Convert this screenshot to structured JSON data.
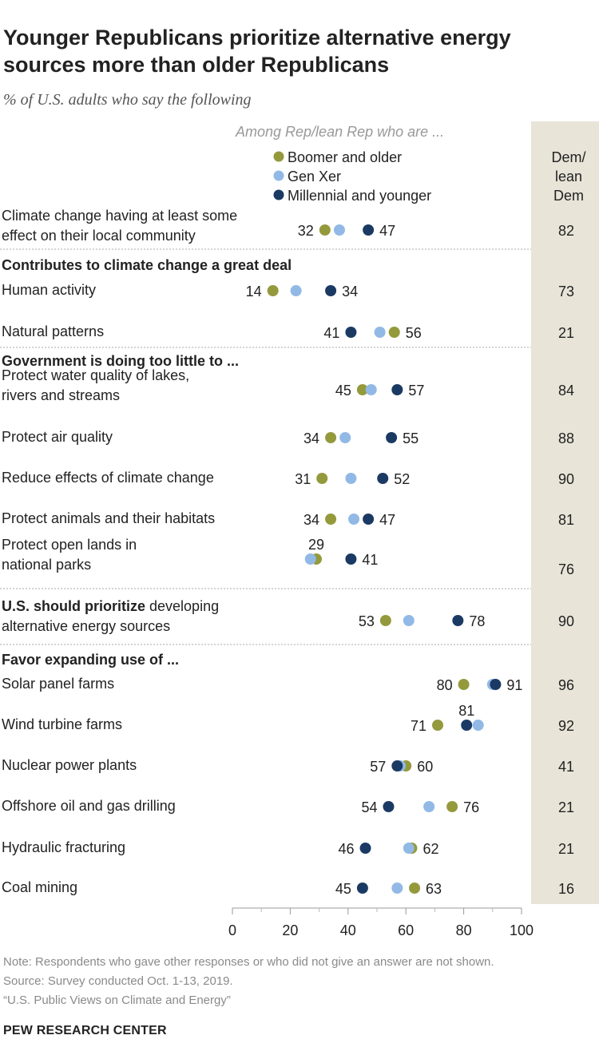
{
  "title": "Younger Republicans prioritize alternative energy sources more than older Republicans",
  "subtitle": "% of U.S. adults who say the following",
  "colors": {
    "boomer": "#949a3c",
    "genx": "#92b9e6",
    "millennial": "#1b3a63",
    "dem_band": "#e8e4d8"
  },
  "chart_data": {
    "type": "scatter",
    "rep_group_header": "Among Rep/lean Rep who are ...",
    "dem_header": [
      "Dem/",
      "lean",
      "Dem"
    ],
    "series": [
      {
        "key": "boomer",
        "name": "Boomer and older"
      },
      {
        "key": "genx",
        "name": "Gen Xer"
      },
      {
        "key": "millennial",
        "name": "Millennial and younger"
      }
    ],
    "xlim": [
      0,
      100
    ],
    "xticks": [
      0,
      20,
      40,
      60,
      80,
      100
    ],
    "rows": [
      {
        "kind": "item",
        "label": [
          "Climate change having at least some",
          "effect on their local community"
        ],
        "boomer": 32,
        "genx": 37,
        "millennial": 47,
        "labels": {
          "left": "32",
          "right": "47"
        },
        "dem": 82
      },
      {
        "kind": "header",
        "label": "Contributes to climate change a great deal"
      },
      {
        "kind": "item",
        "label": [
          "Human activity"
        ],
        "boomer": 14,
        "genx": 22,
        "millennial": 34,
        "labels": {
          "left": "14",
          "right": "34"
        },
        "dem": 73
      },
      {
        "kind": "item",
        "label": [
          "Natural patterns"
        ],
        "boomer": 56,
        "genx": 51,
        "millennial": 41,
        "labels": {
          "left": "41",
          "right": "56"
        },
        "dem": 21
      },
      {
        "kind": "header",
        "label": "Government is doing too little to ..."
      },
      {
        "kind": "item",
        "label": [
          "Protect water quality of lakes,",
          "rivers and streams"
        ],
        "boomer": 45,
        "genx": 48,
        "millennial": 57,
        "labels": {
          "left": "45",
          "right": "57"
        },
        "dem": 84
      },
      {
        "kind": "item",
        "label": [
          "Protect air quality"
        ],
        "boomer": 34,
        "genx": 39,
        "millennial": 55,
        "labels": {
          "left": "34",
          "right": "55"
        },
        "dem": 88
      },
      {
        "kind": "item",
        "label": [
          "Reduce effects of climate change"
        ],
        "boomer": 31,
        "genx": 41,
        "millennial": 52,
        "labels": {
          "left": "31",
          "right": "52"
        },
        "dem": 90
      },
      {
        "kind": "item",
        "label": [
          "Protect animals and their habitats"
        ],
        "boomer": 34,
        "genx": 42,
        "millennial": 47,
        "labels": {
          "left": "34",
          "right": "47"
        },
        "dem": 81
      },
      {
        "kind": "item",
        "label": [
          "Protect open lands in",
          "national parks"
        ],
        "boomer": 29,
        "genx": 27,
        "millennial": 41,
        "labels": {
          "top": "29",
          "right": "41"
        },
        "dem": 76
      },
      {
        "kind": "item",
        "label_bold": "U.S. should prioritize",
        "label": [
          "U.S. should prioritize developing",
          "alternative energy sources"
        ],
        "boomer": 53,
        "genx": 61,
        "millennial": 78,
        "labels": {
          "left": "53",
          "right": "78"
        },
        "dem": 90
      },
      {
        "kind": "header",
        "label": "Favor expanding use of ..."
      },
      {
        "kind": "item",
        "label": [
          "Solar panel farms"
        ],
        "boomer": 80,
        "genx": 90,
        "millennial": 91,
        "labels": {
          "left": "80",
          "right": "91"
        },
        "dem": 96
      },
      {
        "kind": "item",
        "label": [
          "Wind turbine farms"
        ],
        "boomer": 71,
        "genx": 85,
        "millennial": 81,
        "labels": {
          "left": "71",
          "top": "81"
        },
        "dem": 92
      },
      {
        "kind": "item",
        "label": [
          "Nuclear power plants"
        ],
        "boomer": 60,
        "genx": 58,
        "millennial": 57,
        "labels": {
          "left": "57",
          "right": "60"
        },
        "dem": 41
      },
      {
        "kind": "item",
        "label": [
          "Offshore oil and gas drilling"
        ],
        "boomer": 76,
        "genx": 68,
        "millennial": 54,
        "labels": {
          "left": "54",
          "right": "76"
        },
        "dem": 21
      },
      {
        "kind": "item",
        "label": [
          "Hydraulic fracturing"
        ],
        "boomer": 62,
        "genx": 61,
        "millennial": 46,
        "labels": {
          "left": "46",
          "right": "62"
        },
        "dem": 21
      },
      {
        "kind": "item",
        "label": [
          "Coal mining"
        ],
        "boomer": 63,
        "genx": 57,
        "millennial": 45,
        "labels": {
          "left": "45",
          "right": "63"
        },
        "dem": 16
      }
    ]
  },
  "notes": {
    "note": "Note: Respondents who gave other responses or who did not give an answer are not shown.",
    "source": "Source: Survey conducted Oct. 1-13, 2019.",
    "report": "“U.S. Public Views on Climate and Energy”"
  },
  "logo": "PEW RESEARCH CENTER"
}
